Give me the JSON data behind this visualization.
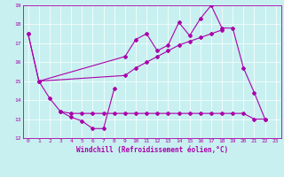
{
  "xlabel": "Windchill (Refroidissement éolien,°C)",
  "bg_color": "#c8f0f0",
  "line_color": "#aa00aa",
  "xlim": [
    -0.5,
    23.5
  ],
  "ylim": [
    12,
    19
  ],
  "xticks": [
    0,
    1,
    2,
    3,
    4,
    5,
    6,
    7,
    8,
    9,
    10,
    11,
    12,
    13,
    14,
    15,
    16,
    17,
    18,
    19,
    20,
    21,
    22,
    23
  ],
  "yticks": [
    12,
    13,
    14,
    15,
    16,
    17,
    18,
    19
  ],
  "s1_x": [
    0,
    1,
    2,
    3,
    4,
    5,
    6,
    7,
    8
  ],
  "s1_y": [
    17.5,
    15.0,
    14.1,
    13.4,
    13.1,
    12.9,
    12.5,
    12.5,
    14.6
  ],
  "s2_x": [
    3,
    4,
    5,
    6,
    7,
    8,
    9,
    10,
    11,
    12,
    13,
    14,
    15,
    16,
    17,
    18,
    19,
    20,
    21,
    22
  ],
  "s2_y": [
    13.4,
    13.3,
    13.3,
    13.3,
    13.3,
    13.3,
    13.3,
    13.3,
    13.3,
    13.3,
    13.3,
    13.3,
    13.3,
    13.3,
    13.3,
    13.3,
    13.3,
    13.3,
    13.0,
    13.0
  ],
  "s3_x": [
    0,
    1,
    9,
    10,
    11,
    12,
    13,
    14,
    15,
    16,
    17,
    18,
    19,
    20,
    21,
    22
  ],
  "s3_y": [
    17.5,
    15.0,
    16.3,
    17.2,
    17.5,
    16.6,
    16.9,
    18.1,
    17.4,
    18.3,
    19.0,
    17.8,
    17.8,
    15.7,
    14.4,
    13.0
  ],
  "s4_x": [
    1,
    9,
    10,
    11,
    12,
    13,
    14,
    15,
    16,
    17,
    18
  ],
  "s4_y": [
    15.0,
    15.3,
    15.7,
    16.0,
    16.3,
    16.6,
    16.9,
    17.1,
    17.3,
    17.5,
    17.7
  ],
  "marker": "D",
  "markersize": 2.0,
  "linewidth": 0.8,
  "grid_color": "#ffffff",
  "tick_fontsize": 4.5,
  "xlabel_fontsize": 5.5,
  "spine_linewidth": 0.6
}
